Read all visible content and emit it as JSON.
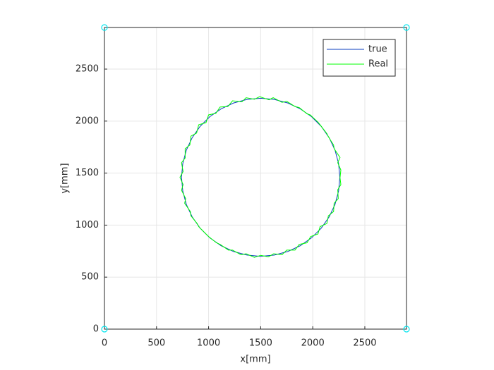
{
  "chart_data": {
    "type": "line",
    "xlabel": "x[mm]",
    "ylabel": "y[mm]",
    "xlim": [
      0,
      2900
    ],
    "ylim": [
      0,
      2900
    ],
    "xticks": [
      0,
      500,
      1000,
      1500,
      2000,
      2500
    ],
    "yticks": [
      0,
      500,
      1000,
      1500,
      2000,
      2500
    ],
    "grid": true,
    "legend": "upper right",
    "series": [
      {
        "name": "true",
        "color": "#0a3cbf",
        "x": [
          2260,
          2248,
          2214,
          2158,
          2082,
          1989,
          1880,
          1760,
          1632,
          1500,
          1368,
          1240,
          1120,
          1011,
          918,
          842,
          786,
          752,
          740,
          752,
          786,
          842,
          918,
          1011,
          1120,
          1240,
          1368,
          1500,
          1632,
          1760,
          1880,
          1989,
          2082,
          2158,
          2214,
          2248,
          2260
        ],
        "values": [
          1460,
          1592,
          1720,
          1840,
          1949,
          2042,
          2118,
          2174,
          2208,
          2220,
          2208,
          2174,
          2118,
          2042,
          1949,
          1840,
          1720,
          1592,
          1460,
          1328,
          1200,
          1080,
          971,
          878,
          802,
          746,
          712,
          700,
          712,
          746,
          802,
          878,
          971,
          1080,
          1200,
          1328,
          1460
        ]
      },
      {
        "name": "Real",
        "color": "#00ff00",
        "x": [
          2262,
          2270,
          2240,
          2262,
          2205,
          2200,
          2150,
          2135,
          2070,
          2050,
          1975,
          1945,
          1870,
          1830,
          1750,
          1705,
          1620,
          1580,
          1490,
          1440,
          1360,
          1320,
          1230,
          1185,
          1110,
          1070,
          1000,
          975,
          905,
          885,
          830,
          820,
          775,
          775,
          740,
          755,
          725,
          755,
          740,
          780,
          770,
          825,
          830,
          890,
          905,
          975,
          1000,
          1075,
          1110,
          1190,
          1230,
          1310,
          1360,
          1440,
          1500,
          1575,
          1625,
          1705,
          1750,
          1830,
          1870,
          1945,
          1980,
          2050,
          2070,
          2135,
          2150,
          2200,
          2205,
          2245,
          2240,
          2270,
          2262
        ],
        "values": [
          1455,
          1530,
          1600,
          1650,
          1735,
          1770,
          1850,
          1880,
          1965,
          1990,
          2060,
          2070,
          2130,
          2140,
          2190,
          2180,
          2225,
          2205,
          2235,
          2210,
          2225,
          2185,
          2195,
          2140,
          2135,
          2075,
          2060,
          1985,
          1965,
          1885,
          1855,
          1770,
          1735,
          1645,
          1600,
          1515,
          1460,
          1390,
          1335,
          1255,
          1210,
          1130,
          1090,
          1015,
          985,
          915,
          890,
          830,
          815,
          760,
          760,
          715,
          725,
          690,
          710,
          695,
          725,
          715,
          760,
          760,
          815,
          830,
          890,
          915,
          985,
          1015,
          1090,
          1130,
          1210,
          1255,
          1340,
          1390,
          1455
        ]
      },
      {
        "color": "#00e5ee",
        "marker": "o",
        "linestyle": "none",
        "x": [
          0,
          0,
          2900,
          2900
        ],
        "values": [
          0,
          2900,
          0,
          2900
        ]
      }
    ]
  }
}
